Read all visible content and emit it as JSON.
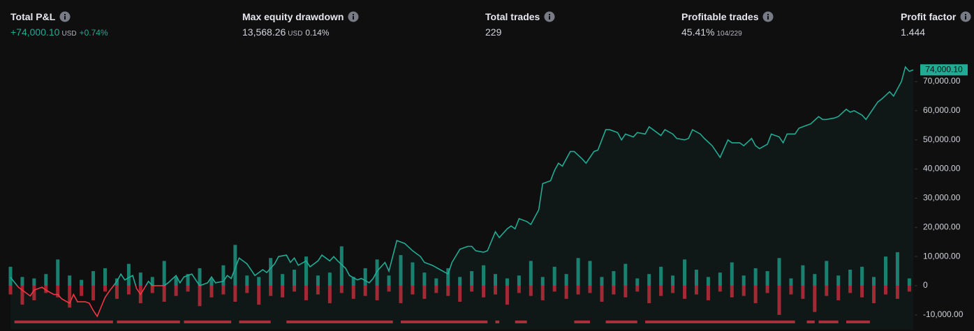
{
  "metrics": [
    {
      "label": "Total P&L",
      "value": "+74,000.10",
      "unit": "USD",
      "extra": "+0.74%"
    },
    {
      "label": "Max equity drawdown",
      "value": "13,568.26",
      "unit": "USD",
      "extra": "0.14%"
    },
    {
      "label": "Total trades",
      "value": "229"
    },
    {
      "label": "Profitable trades",
      "value": "45.41%",
      "extra": "104/229"
    },
    {
      "label": "Profit factor",
      "value": "1.444"
    }
  ],
  "chart_data": {
    "type": "line",
    "xlim": [
      0,
      229
    ],
    "ylim": [
      -15000,
      77000
    ],
    "yticks": [
      {
        "value": -10000,
        "label": "-10,000.00"
      },
      0,
      {
        "value": 10000,
        "label": "10,000.00"
      },
      {
        "value": 20000,
        "label": "20,000.00"
      },
      {
        "value": 30000,
        "label": "30,000.00"
      },
      {
        "value": 40000,
        "label": "40,000.00"
      },
      {
        "value": 50000,
        "label": "50,000.00"
      },
      {
        "value": 60000,
        "label": "60,000.00"
      },
      {
        "value": 70000,
        "label": "70,000.00"
      }
    ],
    "end_label": "74,000.10",
    "series": [
      {
        "color": "#22ab94",
        "negative_color": "#f23645",
        "x": [
          0,
          2,
          4,
          5,
          6,
          8,
          9,
          11,
          12,
          13,
          15,
          16,
          17,
          19,
          20,
          21,
          22,
          24,
          25,
          27,
          28,
          29,
          31,
          32,
          33,
          35,
          36,
          37,
          39,
          40,
          42,
          43,
          44,
          46,
          47,
          48,
          50,
          51,
          52,
          54,
          55,
          56,
          58,
          60,
          61,
          62,
          64,
          65,
          67,
          68,
          70,
          71,
          72,
          73,
          75,
          76,
          78,
          79,
          81,
          82,
          83,
          85,
          86,
          88,
          89,
          91,
          92,
          93,
          95,
          96,
          98,
          100,
          102,
          104,
          105,
          107,
          109,
          111,
          112,
          114,
          116,
          117,
          118,
          120,
          121,
          123,
          124,
          126,
          127,
          128,
          129,
          131,
          132,
          134,
          135,
          137,
          138,
          139,
          140,
          142,
          143,
          145,
          146,
          148,
          149,
          151,
          152,
          154,
          155,
          156,
          158,
          159,
          161,
          162,
          163,
          165,
          166,
          168,
          169,
          171,
          172,
          173,
          175,
          176,
          178,
          179,
          180,
          182,
          183,
          185,
          186,
          188,
          189,
          190,
          192,
          193,
          195,
          196,
          197,
          199,
          200,
          202,
          203,
          205,
          206,
          207,
          209,
          210,
          212,
          213,
          214,
          216,
          217,
          219,
          220,
          221,
          223,
          224,
          226,
          227,
          228,
          229
        ],
        "values": [
          2900,
          -500,
          -2500,
          -3500,
          -1500,
          -500,
          -1500,
          -3000,
          -3000,
          -4500,
          -6000,
          -3000,
          -5500,
          -5500,
          -6000,
          -8500,
          -10500,
          -4000,
          -2000,
          1500,
          4000,
          2000,
          3500,
          -1000,
          -3000,
          1500,
          0,
          0,
          0,
          1000,
          3500,
          1000,
          3000,
          4000,
          2000,
          0,
          1000,
          3000,
          1000,
          1500,
          3500,
          2500,
          9500,
          7500,
          5500,
          3500,
          5500,
          4500,
          7500,
          10000,
          10500,
          8000,
          9500,
          7000,
          8500,
          6500,
          8500,
          10500,
          8500,
          10000,
          8500,
          6000,
          3500,
          2000,
          2500,
          1000,
          2500,
          5000,
          8000,
          5000,
          15500,
          14500,
          12000,
          10000,
          8000,
          7000,
          5500,
          4000,
          8000,
          12500,
          13500,
          13500,
          12000,
          11500,
          12000,
          18500,
          16500,
          19500,
          20500,
          19500,
          23000,
          22000,
          21000,
          26000,
          35000,
          36000,
          39500,
          42000,
          41000,
          46000,
          46000,
          43500,
          42000,
          46000,
          46500,
          53500,
          53500,
          52500,
          50000,
          52000,
          51000,
          52500,
          52000,
          54500,
          53500,
          51500,
          53500,
          52000,
          50500,
          50000,
          50500,
          53500,
          52000,
          50500,
          48000,
          46000,
          44000,
          50000,
          49000,
          49000,
          48000,
          50500,
          48000,
          47000,
          48500,
          52000,
          51000,
          49000,
          52000,
          52000,
          54000,
          55000,
          55500,
          58000,
          57000,
          57000,
          57500,
          58000,
          60500,
          59500,
          60000,
          58500,
          57000,
          61000,
          63000,
          64000,
          66500,
          65000,
          70000,
          75000,
          73500,
          74000.1
        ]
      }
    ],
    "bars": {
      "x": [
        0,
        3,
        6,
        9,
        12,
        15,
        18,
        21,
        24,
        27,
        30,
        33,
        36,
        39,
        42,
        45,
        48,
        51,
        54,
        57,
        60,
        63,
        66,
        69,
        72,
        75,
        78,
        81,
        84,
        87,
        90,
        93,
        96,
        99,
        102,
        105,
        108,
        111,
        114,
        117,
        120,
        123,
        126,
        129,
        132,
        135,
        138,
        141,
        144,
        147,
        150,
        153,
        156,
        159,
        162,
        165,
        168,
        171,
        174,
        177,
        180,
        183,
        186,
        189,
        192,
        195,
        198,
        201,
        204,
        207,
        210,
        213,
        216,
        219,
        222,
        225,
        228
      ],
      "series": [
        {
          "color": "#1a7f6e",
          "values": [
            6500,
            3000,
            2500,
            4000,
            9000,
            3500,
            2000,
            5000,
            6000,
            2500,
            7500,
            4500,
            3000,
            8500,
            3000,
            4000,
            6000,
            2500,
            7000,
            14000,
            3500,
            3000,
            9500,
            4000,
            5500,
            10000,
            3500,
            4500,
            13500,
            3000,
            6000,
            9000,
            3500,
            10500,
            8000,
            4500,
            2500,
            6000,
            3000,
            5000,
            7000,
            4000,
            2500,
            3500,
            8500,
            3000,
            6500,
            4000,
            9500,
            8500,
            3000,
            5000,
            7500,
            2500,
            4000,
            6500,
            3500,
            9000,
            5500,
            3000,
            4500,
            8000,
            3500,
            6000,
            5000,
            9500,
            2500,
            7000,
            4000,
            8500,
            3500,
            5500,
            6500,
            3000,
            10000,
            11500,
            2500
          ]
        },
        {
          "color": "#a9232e",
          "values": [
            -3000,
            -6500,
            -5000,
            -2500,
            -4000,
            -7500,
            -3500,
            -5000,
            -2000,
            -4500,
            -3000,
            -6000,
            -2500,
            -5500,
            -3500,
            -2000,
            -7000,
            -4000,
            -3000,
            -5500,
            -2500,
            -6500,
            -3500,
            -4000,
            -2000,
            -5000,
            -3000,
            -6000,
            -2500,
            -4500,
            -3500,
            -5000,
            -2000,
            -6000,
            -3000,
            -4500,
            -2500,
            -3500,
            -5500,
            -2000,
            -4000,
            -3000,
            -6500,
            -2500,
            -3500,
            -5000,
            -2000,
            -4500,
            -3000,
            -2500,
            -5500,
            -3000,
            -4000,
            -2000,
            -6000,
            -3500,
            -2500,
            -4500,
            -3000,
            -5000,
            -2000,
            -4000,
            -3500,
            -6000,
            -2500,
            -10000,
            -3000,
            -4500,
            -9000,
            -3500,
            -5000,
            -2500,
            -4000,
            -6000,
            -3000,
            -4500,
            -2000
          ]
        }
      ]
    },
    "drawdown_periods": [
      [
        1,
        26
      ],
      [
        27,
        43
      ],
      [
        44,
        56
      ],
      [
        58,
        66
      ],
      [
        70,
        97
      ],
      [
        99,
        121
      ],
      [
        123,
        124
      ],
      [
        128,
        131
      ],
      [
        143,
        147
      ],
      [
        151,
        159
      ],
      [
        161,
        199
      ],
      [
        202,
        204
      ],
      [
        205,
        210
      ],
      [
        212,
        218
      ]
    ],
    "drawdown_color": "#b22833"
  }
}
